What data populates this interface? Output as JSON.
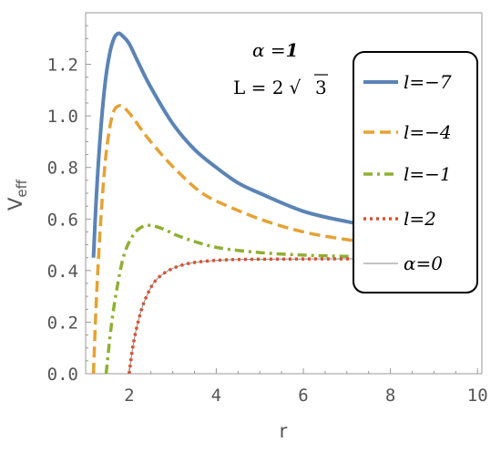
{
  "chart_data": {
    "type": "line",
    "xlabel": "r",
    "ylabel": "V",
    "ylabel_sub": "eff",
    "xlim": [
      1.0,
      10.1
    ],
    "ylim": [
      0.0,
      1.4
    ],
    "xticks": [
      "2",
      "4",
      "6",
      "8",
      "10"
    ],
    "yticks": [
      "0.0",
      "0.2",
      "0.4",
      "0.6",
      "0.8",
      "1.0",
      "1.2"
    ],
    "grid": false,
    "legend_position": "right",
    "annotations": {
      "alpha_symbol": "α",
      "alpha_eq": " =",
      "alpha_value": "1",
      "L_text": "L = 2",
      "sqrt_symbol": "√",
      "sqrt_arg": "3"
    },
    "series": [
      {
        "name": "l=−7",
        "color": "#5B84B5",
        "style": "solid",
        "points": [
          [
            1.18,
            0.45
          ],
          [
            1.25,
            0.7
          ],
          [
            1.35,
            0.95
          ],
          [
            1.45,
            1.13
          ],
          [
            1.55,
            1.24
          ],
          [
            1.65,
            1.3
          ],
          [
            1.75,
            1.32
          ],
          [
            1.85,
            1.31
          ],
          [
            2.0,
            1.28
          ],
          [
            2.2,
            1.21
          ],
          [
            2.5,
            1.11
          ],
          [
            3.0,
            0.97
          ],
          [
            3.5,
            0.87
          ],
          [
            4.0,
            0.8
          ],
          [
            4.5,
            0.74
          ],
          [
            5.0,
            0.7
          ],
          [
            6.0,
            0.63
          ],
          [
            7.0,
            0.59
          ],
          [
            8.0,
            0.56
          ],
          [
            9.0,
            0.53
          ],
          [
            10.0,
            0.51
          ]
        ]
      },
      {
        "name": "l=−4",
        "color": "#E5A234",
        "style": "dashed",
        "points": [
          [
            1.18,
            0.0
          ],
          [
            1.25,
            0.3
          ],
          [
            1.35,
            0.6
          ],
          [
            1.45,
            0.82
          ],
          [
            1.55,
            0.95
          ],
          [
            1.65,
            1.02
          ],
          [
            1.78,
            1.04
          ],
          [
            1.9,
            1.03
          ],
          [
            2.1,
            0.99
          ],
          [
            2.4,
            0.92
          ],
          [
            2.8,
            0.84
          ],
          [
            3.2,
            0.77
          ],
          [
            3.6,
            0.71
          ],
          [
            4.0,
            0.67
          ],
          [
            5.0,
            0.6
          ],
          [
            6.0,
            0.55
          ],
          [
            7.0,
            0.52
          ],
          [
            8.0,
            0.5
          ],
          [
            9.0,
            0.48
          ],
          [
            10.0,
            0.47
          ]
        ]
      },
      {
        "name": "l=−1",
        "color": "#8FB032",
        "style": "dashdot",
        "points": [
          [
            1.47,
            0.0
          ],
          [
            1.6,
            0.2
          ],
          [
            1.75,
            0.36
          ],
          [
            1.9,
            0.47
          ],
          [
            2.1,
            0.54
          ],
          [
            2.3,
            0.57
          ],
          [
            2.5,
            0.575
          ],
          [
            2.8,
            0.56
          ],
          [
            3.2,
            0.53
          ],
          [
            4.0,
            0.49
          ],
          [
            5.0,
            0.47
          ],
          [
            6.0,
            0.46
          ],
          [
            7.0,
            0.455
          ],
          [
            8.0,
            0.452
          ],
          [
            9.0,
            0.45
          ],
          [
            10.0,
            0.45
          ]
        ]
      },
      {
        "name": "l=2",
        "color": "#D9522E",
        "style": "dotted",
        "points": [
          [
            2.0,
            0.0
          ],
          [
            2.1,
            0.12
          ],
          [
            2.25,
            0.23
          ],
          [
            2.4,
            0.3
          ],
          [
            2.6,
            0.36
          ],
          [
            2.9,
            0.4
          ],
          [
            3.3,
            0.425
          ],
          [
            3.8,
            0.437
          ],
          [
            4.5,
            0.443
          ],
          [
            6.0,
            0.445
          ],
          [
            8.0,
            0.446
          ],
          [
            10.0,
            0.446
          ]
        ]
      },
      {
        "name": "α=0",
        "color": "#8A8A8A",
        "style": "thin",
        "points": [
          [
            2.0,
            0.0
          ],
          [
            2.1,
            0.12
          ],
          [
            2.25,
            0.23
          ],
          [
            2.4,
            0.3
          ],
          [
            2.6,
            0.36
          ],
          [
            2.9,
            0.4
          ],
          [
            3.3,
            0.425
          ],
          [
            3.8,
            0.437
          ],
          [
            4.5,
            0.443
          ],
          [
            6.0,
            0.445
          ],
          [
            8.0,
            0.446
          ],
          [
            10.0,
            0.446
          ]
        ]
      }
    ]
  }
}
